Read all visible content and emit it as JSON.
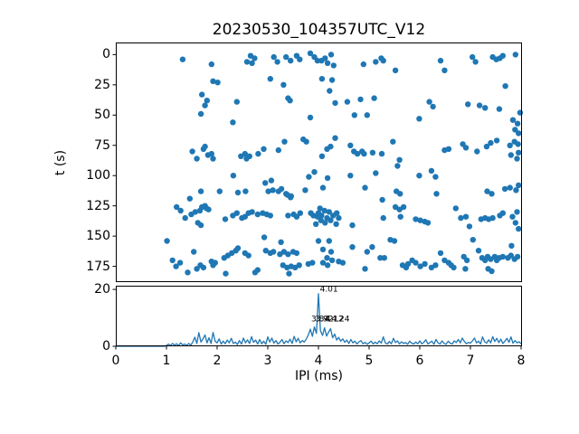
{
  "title": "20230530_104357UTC_V12",
  "colors": {
    "series": "#1f77b4",
    "axis": "#000000",
    "background": "#ffffff",
    "text": "#000000"
  },
  "chart_data": [
    {
      "type": "scatter",
      "name": "pulse-times-scatter",
      "ylabel": "t (s)",
      "xlabel": "",
      "xlim": [
        0,
        8
      ],
      "ylim": [
        -10,
        188
      ],
      "y_inverted": true,
      "grid": false,
      "xticks": [
        0,
        1,
        2,
        3,
        4,
        5,
        6,
        7,
        8
      ],
      "show_xtick_labels": false,
      "yticks": [
        0,
        25,
        50,
        75,
        100,
        125,
        150,
        175
      ],
      "points": [
        [
          1.32,
          4
        ],
        [
          1.89,
          8
        ],
        [
          2.59,
          6
        ],
        [
          2.66,
          1
        ],
        [
          2.74,
          3
        ],
        [
          2.69,
          7
        ],
        [
          3.12,
          2
        ],
        [
          3.19,
          6
        ],
        [
          3.36,
          2
        ],
        [
          3.45,
          5
        ],
        [
          3.57,
          1
        ],
        [
          3.63,
          4
        ],
        [
          3.84,
          -1
        ],
        [
          3.92,
          2
        ],
        [
          3.98,
          5
        ],
        [
          4.06,
          5
        ],
        [
          4.13,
          3
        ],
        [
          4.18,
          7
        ],
        [
          4.25,
          0
        ],
        [
          4.3,
          9
        ],
        [
          4.89,
          8
        ],
        [
          5.13,
          6
        ],
        [
          5.24,
          3
        ],
        [
          5.28,
          5
        ],
        [
          6.41,
          5
        ],
        [
          7.04,
          2
        ],
        [
          7.1,
          6
        ],
        [
          7.44,
          2
        ],
        [
          7.51,
          4
        ],
        [
          7.58,
          3
        ],
        [
          7.64,
          1
        ],
        [
          7.89,
          0
        ],
        [
          5.52,
          13
        ],
        [
          6.49,
          13
        ],
        [
          1.92,
          22
        ],
        [
          2.01,
          23
        ],
        [
          3.05,
          20
        ],
        [
          3.31,
          25
        ],
        [
          4.27,
          21
        ],
        [
          4.22,
          30
        ],
        [
          4.07,
          20
        ],
        [
          7.69,
          26
        ],
        [
          1.7,
          33
        ],
        [
          1.8,
          38
        ],
        [
          1.76,
          42
        ],
        [
          2.39,
          39
        ],
        [
          3.4,
          36
        ],
        [
          3.44,
          38
        ],
        [
          4.33,
          40
        ],
        [
          4.57,
          39
        ],
        [
          4.83,
          37
        ],
        [
          5.1,
          36
        ],
        [
          6.19,
          39
        ],
        [
          6.26,
          43
        ],
        [
          6.95,
          41
        ],
        [
          7.18,
          42
        ],
        [
          7.29,
          44
        ],
        [
          7.57,
          45
        ],
        [
          1.68,
          49
        ],
        [
          2.31,
          56
        ],
        [
          3.84,
          52
        ],
        [
          4.71,
          50
        ],
        [
          4.96,
          50
        ],
        [
          5.99,
          53
        ],
        [
          7.84,
          54
        ],
        [
          7.93,
          57
        ],
        [
          7.88,
          62
        ],
        [
          7.95,
          65
        ],
        [
          7.98,
          48
        ],
        [
          3.7,
          70
        ],
        [
          3.76,
          72
        ],
        [
          1.51,
          80
        ],
        [
          1.6,
          86
        ],
        [
          1.73,
          78
        ],
        [
          1.76,
          76
        ],
        [
          1.82,
          83
        ],
        [
          1.89,
          82
        ],
        [
          1.92,
          86
        ],
        [
          2.47,
          84
        ],
        [
          2.55,
          82
        ],
        [
          2.58,
          86
        ],
        [
          2.64,
          84
        ],
        [
          2.81,
          82
        ],
        [
          2.92,
          78
        ],
        [
          3.21,
          79
        ],
        [
          3.33,
          72
        ],
        [
          4.33,
          69
        ],
        [
          4.24,
          76
        ],
        [
          4.17,
          78
        ],
        [
          4.07,
          84
        ],
        [
          4.63,
          75
        ],
        [
          4.7,
          80
        ],
        [
          4.77,
          82
        ],
        [
          4.86,
          80
        ],
        [
          4.9,
          82
        ],
        [
          5.07,
          81
        ],
        [
          5.25,
          82
        ],
        [
          5.47,
          72
        ],
        [
          5.6,
          87
        ],
        [
          6.49,
          79
        ],
        [
          6.57,
          78
        ],
        [
          6.85,
          74
        ],
        [
          6.91,
          77
        ],
        [
          7.13,
          80
        ],
        [
          7.32,
          76
        ],
        [
          7.4,
          73
        ],
        [
          7.52,
          71
        ],
        [
          7.78,
          75
        ],
        [
          7.87,
          72
        ],
        [
          7.94,
          74
        ],
        [
          7.8,
          83
        ],
        [
          7.92,
          86
        ],
        [
          7.95,
          81
        ],
        [
          2.32,
          100
        ],
        [
          2.95,
          106
        ],
        [
          3.07,
          104
        ],
        [
          3.27,
          111
        ],
        [
          3.36,
          115
        ],
        [
          3.45,
          118
        ],
        [
          3.81,
          101
        ],
        [
          3.92,
          97
        ],
        [
          3.74,
          112
        ],
        [
          1.68,
          113
        ],
        [
          2.05,
          113
        ],
        [
          2.41,
          114
        ],
        [
          2.56,
          113
        ],
        [
          3.01,
          113
        ],
        [
          3.1,
          112
        ],
        [
          3.21,
          113
        ],
        [
          3.39,
          116
        ],
        [
          3.46,
          117
        ],
        [
          1.46,
          119
        ],
        [
          4.18,
          102
        ],
        [
          4.63,
          100
        ],
        [
          5.13,
          98
        ],
        [
          5.56,
          92
        ],
        [
          5.99,
          100
        ],
        [
          6.23,
          96
        ],
        [
          6.31,
          101
        ],
        [
          4.92,
          110
        ],
        [
          5.54,
          113
        ],
        [
          5.61,
          115
        ],
        [
          6.33,
          115
        ],
        [
          7.33,
          113
        ],
        [
          7.42,
          115
        ],
        [
          7.68,
          111
        ],
        [
          7.78,
          110
        ],
        [
          7.9,
          112
        ],
        [
          4.09,
          110
        ],
        [
          5.26,
          120
        ],
        [
          7.95,
          108
        ],
        [
          1.2,
          126
        ],
        [
          1.28,
          129
        ],
        [
          1.49,
          132
        ],
        [
          1.57,
          130
        ],
        [
          1.66,
          129
        ],
        [
          1.7,
          126
        ],
        [
          1.76,
          125
        ],
        [
          1.79,
          127
        ],
        [
          1.83,
          128
        ],
        [
          1.62,
          139
        ],
        [
          1.68,
          141
        ],
        [
          1.37,
          135
        ],
        [
          2.16,
          136
        ],
        [
          2.31,
          133
        ],
        [
          2.39,
          131
        ],
        [
          2.49,
          135
        ],
        [
          2.55,
          134
        ],
        [
          2.62,
          131
        ],
        [
          2.69,
          130
        ],
        [
          2.8,
          132
        ],
        [
          2.9,
          131
        ],
        [
          2.98,
          132
        ],
        [
          3.05,
          133
        ],
        [
          3.4,
          133
        ],
        [
          3.51,
          132
        ],
        [
          3.57,
          134
        ],
        [
          3.64,
          131
        ],
        [
          3.9,
          133
        ],
        [
          3.98,
          134
        ],
        [
          4.03,
          127
        ],
        [
          4.12,
          129
        ],
        [
          4.21,
          130
        ],
        [
          4.06,
          133
        ],
        [
          4.17,
          135
        ],
        [
          4.29,
          133
        ],
        [
          4.36,
          131
        ],
        [
          4.4,
          135
        ],
        [
          4.13,
          139
        ],
        [
          4.35,
          140
        ],
        [
          4.67,
          141
        ],
        [
          3.95,
          140
        ],
        [
          4.05,
          137
        ],
        [
          4.0,
          131
        ],
        [
          4.24,
          137
        ],
        [
          3.85,
          131
        ],
        [
          5.52,
          126
        ],
        [
          5.6,
          128
        ],
        [
          5.68,
          126
        ],
        [
          5.62,
          134
        ],
        [
          5.28,
          135
        ],
        [
          5.92,
          136
        ],
        [
          6.01,
          137
        ],
        [
          6.1,
          138
        ],
        [
          6.16,
          139
        ],
        [
          6.71,
          127
        ],
        [
          6.81,
          135
        ],
        [
          6.91,
          134
        ],
        [
          6.98,
          142
        ],
        [
          7.21,
          136
        ],
        [
          7.29,
          135
        ],
        [
          7.36,
          136
        ],
        [
          7.44,
          135
        ],
        [
          7.58,
          133
        ],
        [
          7.64,
          131
        ],
        [
          7.92,
          130
        ],
        [
          7.83,
          134
        ],
        [
          7.89,
          139
        ],
        [
          7.95,
          144
        ],
        [
          1.01,
          154
        ],
        [
          1.54,
          163
        ],
        [
          2.93,
          151
        ],
        [
          3.26,
          155
        ],
        [
          2.96,
          162
        ],
        [
          3.05,
          164
        ],
        [
          3.11,
          163
        ],
        [
          4.0,
          154
        ],
        [
          4.21,
          154
        ],
        [
          4.09,
          161
        ],
        [
          4.25,
          163
        ],
        [
          4.67,
          159
        ],
        [
          4.96,
          163
        ],
        [
          5.06,
          159
        ],
        [
          5.42,
          153
        ],
        [
          5.5,
          154
        ],
        [
          7.05,
          153
        ],
        [
          7.81,
          158
        ],
        [
          7.16,
          162
        ],
        [
          6.41,
          164
        ],
        [
          2.14,
          168
        ],
        [
          2.21,
          166
        ],
        [
          2.29,
          164
        ],
        [
          2.37,
          162
        ],
        [
          2.41,
          160
        ],
        [
          2.55,
          164
        ],
        [
          2.62,
          166
        ],
        [
          3.24,
          165
        ],
        [
          3.32,
          163
        ],
        [
          3.4,
          165
        ],
        [
          3.5,
          163
        ],
        [
          3.57,
          164
        ],
        [
          1.12,
          170
        ],
        [
          1.19,
          175
        ],
        [
          1.27,
          172
        ],
        [
          1.6,
          177
        ],
        [
          1.67,
          174
        ],
        [
          1.73,
          176
        ],
        [
          1.89,
          171
        ],
        [
          1.96,
          172
        ],
        [
          1.92,
          174
        ],
        [
          2.8,
          178
        ],
        [
          3.3,
          174
        ],
        [
          3.38,
          176
        ],
        [
          3.46,
          175
        ],
        [
          3.54,
          176
        ],
        [
          3.62,
          174
        ],
        [
          3.8,
          173
        ],
        [
          3.88,
          172
        ],
        [
          4.17,
          168
        ],
        [
          4.27,
          170
        ],
        [
          4.09,
          172
        ],
        [
          4.18,
          174
        ],
        [
          4.4,
          171
        ],
        [
          4.48,
          172
        ],
        [
          5.22,
          168
        ],
        [
          5.3,
          168
        ],
        [
          4.92,
          177
        ],
        [
          5.66,
          174
        ],
        [
          5.73,
          176
        ],
        [
          5.77,
          173
        ],
        [
          5.85,
          170
        ],
        [
          5.92,
          172
        ],
        [
          6.01,
          175
        ],
        [
          6.1,
          173
        ],
        [
          6.23,
          176
        ],
        [
          6.31,
          174
        ],
        [
          6.49,
          170
        ],
        [
          6.57,
          172
        ],
        [
          6.62,
          174
        ],
        [
          6.67,
          176
        ],
        [
          6.87,
          167
        ],
        [
          6.93,
          170
        ],
        [
          6.9,
          177
        ],
        [
          7.23,
          168
        ],
        [
          7.29,
          170
        ],
        [
          7.34,
          167
        ],
        [
          7.4,
          169
        ],
        [
          7.48,
          167
        ],
        [
          7.52,
          170
        ],
        [
          7.57,
          168
        ],
        [
          7.64,
          167
        ],
        [
          7.74,
          168
        ],
        [
          7.8,
          166
        ],
        [
          7.87,
          169
        ],
        [
          7.93,
          167
        ],
        [
          7.42,
          179
        ],
        [
          7.35,
          177
        ],
        [
          2.17,
          181
        ],
        [
          1.42,
          180
        ],
        [
          2.75,
          180
        ],
        [
          3.42,
          181
        ]
      ]
    },
    {
      "type": "line",
      "name": "ipi-histogram",
      "xlabel": "IPI (ms)",
      "ylabel": "",
      "xlim": [
        0,
        8
      ],
      "ylim": [
        0,
        21.3
      ],
      "grid": false,
      "xticks": [
        0,
        1,
        2,
        3,
        4,
        5,
        6,
        7,
        8
      ],
      "show_xtick_labels": true,
      "yticks": [
        0,
        20
      ],
      "x_start": 0,
      "x_step": 0.04,
      "y_values": [
        0,
        0,
        0,
        0,
        0,
        0,
        0,
        0,
        0,
        0,
        0,
        0,
        0,
        0,
        0,
        0,
        0,
        0,
        0,
        0,
        0,
        0,
        0,
        0,
        0,
        0.3,
        0.8,
        0.3,
        1.0,
        0.4,
        0.9,
        0.3,
        1.2,
        0.5,
        0.8,
        0.3,
        1.0,
        0.4,
        1.5,
        3.2,
        1.0,
        4.8,
        1.5,
        2.5,
        4.0,
        1.2,
        3.0,
        1.0,
        4.9,
        1.8,
        1.2,
        2.6,
        0.8,
        1.8,
        0.9,
        2.2,
        1.2,
        2.8,
        1.0,
        1.5,
        0.6,
        2.0,
        0.8,
        2.9,
        1.2,
        2.3,
        1.0,
        3.4,
        1.4,
        2.2,
        0.8,
        2.4,
        0.9,
        1.8,
        0.7,
        3.3,
        1.5,
        2.9,
        1.1,
        2.0,
        0.8,
        1.4,
        2.4,
        0.9,
        1.9,
        1.3,
        2.5,
        1.0,
        3.5,
        1.6,
        2.8,
        1.2,
        2.0,
        1.5,
        2.6,
        4.0,
        6.0,
        3.5,
        6.8,
        4.5,
        18.5,
        5.5,
        3.8,
        6.5,
        3.6,
        5.0,
        6.2,
        3.0,
        4.3,
        2.2,
        3.1,
        1.8,
        2.6,
        1.4,
        2.2,
        1.0,
        2.4,
        1.2,
        1.8,
        0.8,
        1.6,
        2.0,
        0.9,
        1.4,
        0.7,
        1.2,
        1.8,
        0.8,
        1.5,
        0.9,
        1.9,
        1.1,
        3.3,
        1.2,
        0.8,
        1.7,
        0.9,
        2.8,
        1.3,
        1.9,
        0.8,
        1.6,
        1.0,
        1.3,
        0.7,
        1.8,
        1.1,
        0.8,
        1.5,
        0.9,
        1.9,
        0.9,
        1.4,
        2.3,
        0.8,
        1.3,
        1.8,
        0.7,
        2.4,
        1.2,
        0.8,
        1.9,
        1.0,
        0.7,
        1.8,
        1.1,
        0.8,
        1.9,
        1.3,
        2.4,
        1.2,
        2.9,
        1.7,
        0.9,
        1.4,
        1.1,
        1.9,
        2.9,
        1.2,
        1.8,
        0.8,
        3.3,
        1.6,
        1.1,
        2.3,
        1.2,
        3.4,
        1.7,
        2.8,
        1.3,
        2.5,
        1.0,
        1.8,
        2.8,
        1.4,
        3.3,
        1.1,
        2.0,
        1.2,
        1.6,
        0.9
      ],
      "annotations": [
        {
          "label": "4.01",
          "x": 4.01,
          "y": 19.3
        },
        {
          "label": "3.84",
          "x": 3.84,
          "y": 8.8
        },
        {
          "label": "3.92",
          "x": 3.92,
          "y": 8.8
        },
        {
          "label": "4.12",
          "x": 4.12,
          "y": 8.8
        },
        {
          "label": "4.24",
          "x": 4.24,
          "y": 8.8
        }
      ]
    }
  ]
}
